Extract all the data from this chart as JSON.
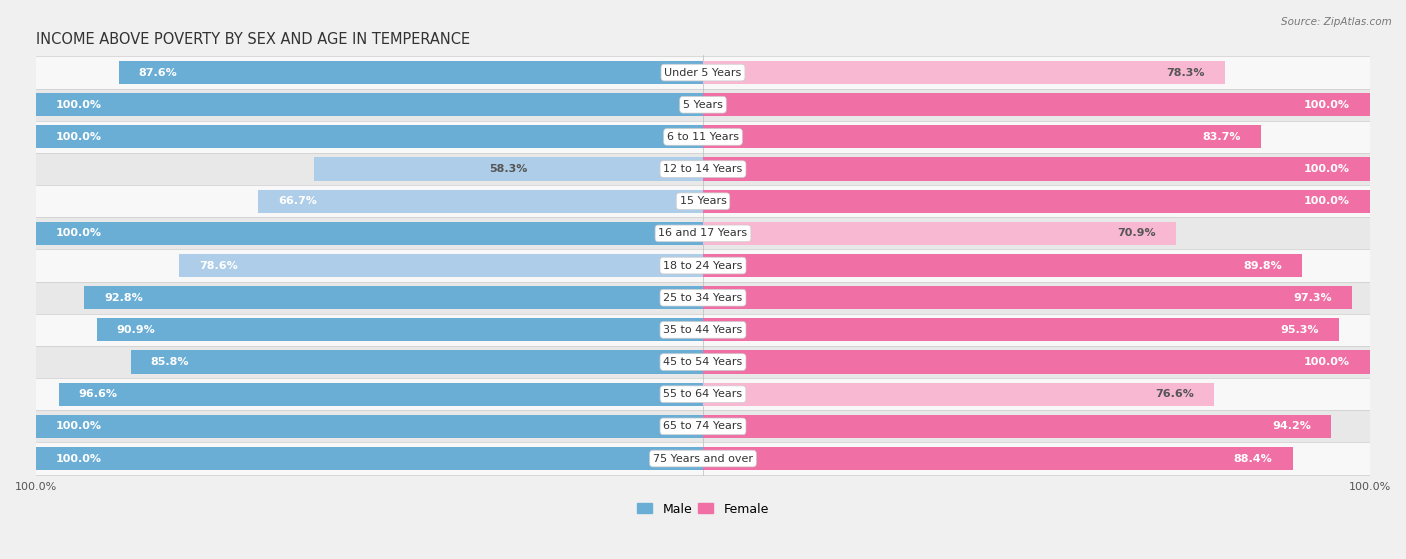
{
  "title": "INCOME ABOVE POVERTY BY SEX AND AGE IN TEMPERANCE",
  "source": "Source: ZipAtlas.com",
  "categories": [
    "Under 5 Years",
    "5 Years",
    "6 to 11 Years",
    "12 to 14 Years",
    "15 Years",
    "16 and 17 Years",
    "18 to 24 Years",
    "25 to 34 Years",
    "35 to 44 Years",
    "45 to 54 Years",
    "55 to 64 Years",
    "65 to 74 Years",
    "75 Years and over"
  ],
  "male_values": [
    87.6,
    100.0,
    100.0,
    58.3,
    66.7,
    100.0,
    78.6,
    92.8,
    90.9,
    85.8,
    96.6,
    100.0,
    100.0
  ],
  "female_values": [
    78.3,
    100.0,
    83.7,
    100.0,
    100.0,
    70.9,
    89.8,
    97.3,
    95.3,
    100.0,
    76.6,
    94.2,
    88.4
  ],
  "male_color": "#6aaed6",
  "female_color": "#f06fa4",
  "male_color_light": "#aecde8",
  "female_color_light": "#f9b8d2",
  "male_label": "Male",
  "female_label": "Female",
  "background_color": "#f0f0f0",
  "row_bg_light": "#f8f8f8",
  "row_bg_dark": "#e8e8e8",
  "title_fontsize": 10.5,
  "label_fontsize": 8,
  "category_fontsize": 8,
  "bar_height": 0.72,
  "x_max": 100.0,
  "axis_label": "100.0%"
}
